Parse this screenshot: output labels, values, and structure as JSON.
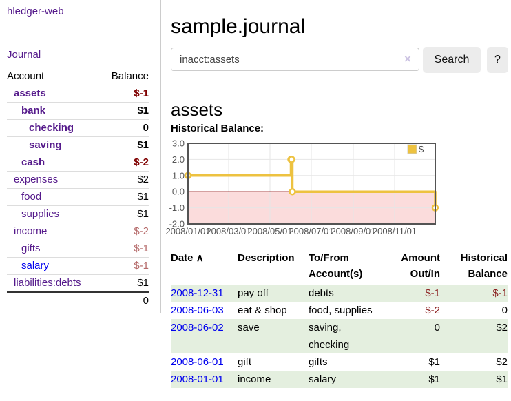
{
  "app_title": "hledger-web",
  "colors": {
    "link_purple": "#551a8b",
    "link_blue": "#0000ee",
    "negative_strong": "#7f0000",
    "negative_muted": "#b56a6a",
    "negative_register": "#8b2020",
    "row_green": "#e4efdf",
    "chart_series_gold": "#edc240",
    "chart_negative_region": "#fbdcdc",
    "chart_zero_line": "#8b0000",
    "chart_axis": "#545454",
    "button_gray": "#ececec"
  },
  "sidebar": {
    "journal_link": "Journal",
    "accounts": {
      "header_account": "Account",
      "header_balance": "Balance",
      "rows": [
        {
          "name": "assets",
          "balance": "$-1",
          "level": 1,
          "bold": true,
          "link": "purple",
          "balance_style": "neg-strong"
        },
        {
          "name": "bank",
          "balance": "$1",
          "level": 2,
          "bold": true,
          "link": "purple",
          "balance_style": "plain"
        },
        {
          "name": "checking",
          "balance": "0",
          "level": 3,
          "bold": true,
          "link": "purple",
          "balance_style": "plain"
        },
        {
          "name": "saving",
          "balance": "$1",
          "level": 3,
          "bold": true,
          "link": "purple",
          "balance_style": "plain"
        },
        {
          "name": "cash",
          "balance": "$-2",
          "level": 2,
          "bold": true,
          "link": "purple",
          "balance_style": "neg-strong"
        },
        {
          "name": "expenses",
          "balance": "$2",
          "level": 1,
          "bold": false,
          "link": "purple",
          "balance_style": "plain"
        },
        {
          "name": "food",
          "balance": "$1",
          "level": 2,
          "bold": false,
          "link": "purple",
          "balance_style": "plain"
        },
        {
          "name": "supplies",
          "balance": "$1",
          "level": 2,
          "bold": false,
          "link": "purple",
          "balance_style": "plain"
        },
        {
          "name": "income",
          "balance": "$-2",
          "level": 1,
          "bold": false,
          "link": "purple",
          "balance_style": "neg-muted"
        },
        {
          "name": "gifts",
          "balance": "$-1",
          "level": 2,
          "bold": false,
          "link": "purple",
          "balance_style": "neg-muted"
        },
        {
          "name": "salary",
          "balance": "$-1",
          "level": 2,
          "bold": false,
          "link": "blue",
          "balance_style": "neg-muted"
        },
        {
          "name": "liabilities:debts",
          "balance": "$1",
          "level": 1,
          "bold": false,
          "link": "purple",
          "balance_style": "plain"
        }
      ],
      "total": "0"
    }
  },
  "main": {
    "title": "sample.journal",
    "search": {
      "value": "inacct:assets",
      "clear_icon": "×",
      "search_button": "Search",
      "help_button": "?"
    },
    "account_heading": "assets"
  },
  "chart_data": {
    "type": "line",
    "step": true,
    "title": "Historical Balance:",
    "series": [
      {
        "name": "$",
        "color": "#edc240",
        "points": [
          [
            "2008-01-01",
            1
          ],
          [
            "2008-06-01",
            2
          ],
          [
            "2008-06-02",
            2
          ],
          [
            "2008-06-03",
            0
          ],
          [
            "2008-12-31",
            -1
          ]
        ]
      }
    ],
    "xlim": [
      "2008-01-01",
      "2008-12-31"
    ],
    "ylim": [
      -2,
      3
    ],
    "yticks": [
      {
        "value": 3,
        "label": "3.0"
      },
      {
        "value": 2,
        "label": "2.0"
      },
      {
        "value": 1,
        "label": "1.0"
      },
      {
        "value": 0,
        "label": "0.0"
      },
      {
        "value": -1,
        "label": "-1.0"
      },
      {
        "value": -2,
        "label": "-2.0"
      }
    ],
    "xticks": [
      {
        "date": "2008-01-01",
        "label": "2008/01/01"
      },
      {
        "date": "2008-03-01",
        "label": "2008/03/01"
      },
      {
        "date": "2008-05-01",
        "label": "2008/05/01"
      },
      {
        "date": "2008-07-01",
        "label": "2008/07/01"
      },
      {
        "date": "2008-09-01",
        "label": "2008/09/01"
      },
      {
        "date": "2008-11-01",
        "label": "2008/11/01"
      }
    ],
    "legend": {
      "position": "top-right",
      "label": "$"
    },
    "grid": true,
    "negative_region_color": "#fbdcdc",
    "zero_line_color": "#8b0000",
    "axis_color": "#545454"
  },
  "register": {
    "headers": {
      "date": "Date",
      "sort_icon": "∧",
      "description": "Description",
      "accounts": "To/From Account(s)",
      "amount": "Amount Out/In",
      "balance": "Historical Balance"
    },
    "rows": [
      {
        "date": "2008-12-31",
        "description": "pay off",
        "accounts": "debts",
        "amount": "$-1",
        "amount_negative": true,
        "balance": "$-1",
        "balance_negative": true
      },
      {
        "date": "2008-06-03",
        "description": "eat & shop",
        "accounts": "food, supplies",
        "amount": "$-2",
        "amount_negative": true,
        "balance": "0",
        "balance_negative": false
      },
      {
        "date": "2008-06-02",
        "description": "save",
        "accounts": "saving, checking",
        "amount": "0",
        "amount_negative": false,
        "balance": "$2",
        "balance_negative": false
      },
      {
        "date": "2008-06-01",
        "description": "gift",
        "accounts": "gifts",
        "amount": "$1",
        "amount_negative": false,
        "balance": "$2",
        "balance_negative": false
      },
      {
        "date": "2008-01-01",
        "description": "income",
        "accounts": "salary",
        "amount": "$1",
        "amount_negative": false,
        "balance": "$1",
        "balance_negative": false
      }
    ]
  }
}
